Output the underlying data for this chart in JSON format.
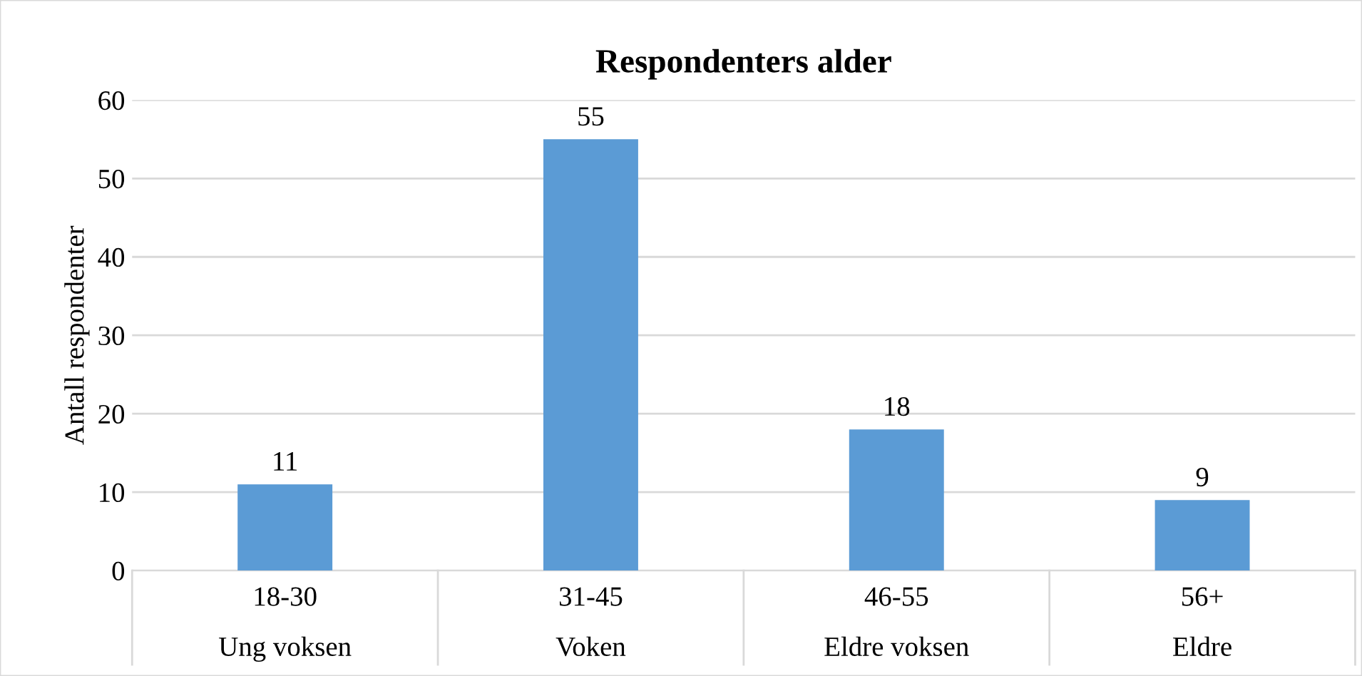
{
  "chart_data": {
    "type": "bar",
    "title": "Respondenters alder",
    "ylabel": "Antall respondenter",
    "categories": [
      "18-30\nUng voksen",
      "31-45\nVoken",
      "46-55\nEldre voksen",
      "56+\nEldre"
    ],
    "values": [
      11,
      55,
      18,
      9
    ],
    "color": "#5b9bd5",
    "ylim": [
      0,
      60
    ],
    "yticks": [
      0,
      10,
      20,
      30,
      40,
      50,
      60
    ],
    "grid": "y",
    "data_labels": true
  }
}
